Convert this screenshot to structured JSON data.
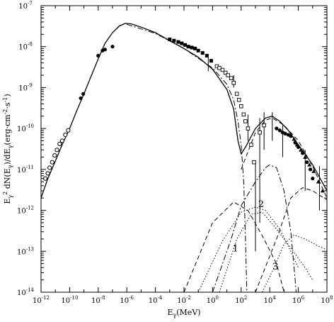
{
  "chart_data": {
    "type": "scatter",
    "title": "",
    "xlabel": "E_γ(MeV)",
    "ylabel": "E_γ^2 dN(E_γ)/dE_γ(erg·cm^-2·s^-1)",
    "xscale": "log",
    "yscale": "log",
    "xlim": [
      1e-12,
      100000000.0
    ],
    "ylim": [
      1e-14,
      1e-07
    ],
    "grid": false,
    "legend": "none",
    "x_ticks": [
      {
        "value": 1e-12,
        "base": "10",
        "exp": "-12"
      },
      {
        "value": 1e-10,
        "base": "10",
        "exp": "-10"
      },
      {
        "value": 1e-08,
        "base": "10",
        "exp": "-8"
      },
      {
        "value": 1e-06,
        "base": "10",
        "exp": "-6"
      },
      {
        "value": 0.0001,
        "base": "10",
        "exp": "-4"
      },
      {
        "value": 0.01,
        "base": "10",
        "exp": "-2"
      },
      {
        "value": 1,
        "base": "10",
        "exp": "0"
      },
      {
        "value": 100.0,
        "base": "10",
        "exp": "2"
      },
      {
        "value": 10000.0,
        "base": "10",
        "exp": "4"
      },
      {
        "value": 1000000.0,
        "base": "10",
        "exp": "6"
      },
      {
        "value": 100000000.0,
        "base": "10",
        "exp": "8"
      }
    ],
    "y_ticks": [
      {
        "value": 1e-14,
        "base": "10",
        "exp": "-14"
      },
      {
        "value": 1e-13,
        "base": "10",
        "exp": "-13"
      },
      {
        "value": 1e-12,
        "base": "10",
        "exp": "-12"
      },
      {
        "value": 1e-11,
        "base": "10",
        "exp": "-11"
      },
      {
        "value": 1e-10,
        "base": "10",
        "exp": "-10"
      },
      {
        "value": 1e-09,
        "base": "10",
        "exp": "-9"
      },
      {
        "value": 1e-08,
        "base": "10",
        "exp": "-8"
      },
      {
        "value": 1e-07,
        "base": "10",
        "exp": "-7"
      }
    ],
    "annotations": [
      {
        "text": "1",
        "x": 40,
        "y": 1e-13
      },
      {
        "text": "2",
        "x": 2500,
        "y": 1.2e-12
      },
      {
        "text": "3",
        "x": 25000,
        "y": 3.6e-14
      }
    ],
    "series": [
      {
        "style": "solid",
        "color": "#000000",
        "points": [
          [
            1e-12,
            2e-12
          ],
          [
            3e-12,
            6e-12
          ],
          [
            1e-11,
            1.6e-11
          ],
          [
            3e-11,
            4e-11
          ],
          [
            1e-10,
            1e-10
          ],
          [
            3e-10,
            2.6e-10
          ],
          [
            1e-09,
            7e-10
          ],
          [
            3e-09,
            1.8e-09
          ],
          [
            1e-08,
            5e-09
          ],
          [
            3e-08,
            1.2e-08
          ],
          [
            1e-07,
            2.2e-08
          ],
          [
            3e-07,
            3.2e-08
          ],
          [
            8e-07,
            3.7e-08
          ],
          [
            2e-06,
            3.6e-08
          ],
          [
            1e-05,
            3e-08
          ],
          [
            0.0001,
            2.2e-08
          ],
          [
            0.001,
            1.4e-08
          ],
          [
            0.01,
            9e-09
          ],
          [
            0.1,
            5.5e-09
          ],
          [
            1,
            2.8e-09
          ],
          [
            10,
            9e-10
          ],
          [
            30,
            3e-10
          ],
          [
            60,
            5e-11
          ],
          [
            100,
            2.4e-11
          ],
          [
            200,
            3.5e-11
          ],
          [
            1000,
            1e-10
          ],
          [
            5000,
            1.8e-10
          ],
          [
            15000,
            2e-10
          ],
          [
            50000,
            1.5e-10
          ],
          [
            200000,
            9e-11
          ],
          [
            1000000.0,
            4e-11
          ],
          [
            10000000.0,
            1.3e-11
          ],
          [
            100000000.0,
            3e-12
          ]
        ]
      },
      {
        "style": "dashdot",
        "color": "#000000",
        "points": [
          [
            1e-06,
            3.5e-08
          ],
          [
            0.0001,
            2.1e-08
          ],
          [
            0.01,
            9e-09
          ],
          [
            1,
            3e-09
          ],
          [
            10,
            1.2e-09
          ],
          [
            30,
            5e-10
          ],
          [
            60,
            1.5e-10
          ],
          [
            100,
            4e-11
          ],
          [
            150,
            5e-12
          ],
          [
            200,
            2e-13
          ],
          [
            250,
            1e-14
          ]
        ]
      },
      {
        "style": "dashdot",
        "color": "#000000",
        "points": [
          [
            1,
            1e-14
          ],
          [
            20,
            2e-13
          ],
          [
            100,
            1.3e-12
          ],
          [
            1000,
            5e-12
          ],
          [
            5000,
            1.1e-11
          ],
          [
            10000,
            1.3e-11
          ],
          [
            30000,
            1.1e-11
          ],
          [
            100000,
            3e-12
          ],
          [
            300000,
            3e-13
          ],
          [
            600000,
            2e-14
          ],
          [
            700000,
            1e-14
          ]
        ]
      },
      {
        "style": "dashed",
        "color": "#000000",
        "points": [
          [
            0.01,
            1e-14
          ],
          [
            1,
            5e-13
          ],
          [
            30,
            1.6e-12
          ],
          [
            300,
            1e-12
          ],
          [
            3000,
            2.4e-13
          ],
          [
            30000,
            5e-14
          ],
          [
            100000.0,
            1e-14
          ]
        ]
      },
      {
        "style": "dashed",
        "color": "#000000",
        "points": [
          [
            1000,
            1e-14
          ],
          [
            30000,
            2e-13
          ],
          [
            300000,
            2e-12
          ],
          [
            2000000.0,
            3.6e-12
          ],
          [
            10000000.0,
            3e-12
          ],
          [
            100000000.0,
            1.8e-12
          ]
        ]
      },
      {
        "style": "dashed",
        "color": "#000000",
        "points": [
          [
            100,
            1e-11
          ],
          [
            1000,
            8e-11
          ],
          [
            5000,
            1.6e-10
          ],
          [
            15000,
            1.8e-10
          ],
          [
            100000.0,
            1.2e-10
          ],
          [
            1000000.0,
            5e-11
          ],
          [
            10000000.0,
            1.2e-11
          ],
          [
            100000000.0,
            2e-12
          ]
        ]
      },
      {
        "style": "dotted",
        "color": "#000000",
        "points": [
          [
            0.1,
            1e-14
          ],
          [
            5,
            1.8e-13
          ],
          [
            100,
            9e-13
          ],
          [
            1000,
            1.2e-12
          ],
          [
            5000,
            1e-12
          ],
          [
            50000,
            3.5e-13
          ],
          [
            300000,
            1e-13
          ],
          [
            1000000.0,
            4e-14
          ]
        ]
      },
      {
        "style": "dotted",
        "color": "#000000",
        "points": [
          [
            3,
            1e-14
          ],
          [
            50,
            2e-13
          ],
          [
            500,
            8e-13
          ],
          [
            3000,
            9e-13
          ],
          [
            30000,
            3.5e-13
          ],
          [
            300000,
            1.2e-13
          ],
          [
            3000000.0,
            4e-14
          ],
          [
            10000000.0,
            2e-14
          ]
        ]
      },
      {
        "style": "dotted",
        "color": "#000000",
        "points": [
          [
            3000,
            1e-14
          ],
          [
            20000,
            4e-14
          ],
          [
            100000,
            1.5e-13
          ],
          [
            500000,
            2.5e-13
          ],
          [
            3000000.0,
            2e-13
          ],
          [
            30000000.0,
            1.3e-13
          ],
          [
            100000000.0,
            1.1e-13
          ]
        ]
      }
    ],
    "data_points": [
      {
        "marker": "open-circle",
        "points": [
          [
            2e-12,
            6e-12
          ],
          [
            3e-12,
            8e-12
          ],
          [
            4e-12,
            1.1e-11
          ],
          [
            6e-12,
            1.5e-11
          ],
          [
            9e-12,
            2.2e-11
          ],
          [
            1.3e-11,
            3e-11
          ],
          [
            2e-11,
            4.2e-11
          ],
          [
            3e-11,
            5e-11
          ],
          [
            5e-11,
            7e-11
          ],
          [
            8e-11,
            9e-11
          ]
        ]
      },
      {
        "marker": "filled-circle",
        "points": [
          [
            6e-10,
            5.5e-10
          ],
          [
            9e-10,
            7e-10
          ],
          [
            1e-08,
            6e-09
          ],
          [
            2e-08,
            8e-09
          ],
          [
            3e-08,
            8.5e-09
          ],
          [
            1e-07,
            1e-08
          ],
          [
            30000.0,
            1e-10
          ],
          [
            50000.0,
            9e-11
          ],
          [
            80000.0,
            8e-11
          ],
          [
            120000.0,
            7.5e-11
          ],
          [
            200000.0,
            7e-11
          ],
          [
            300000.0,
            6.5e-11
          ],
          [
            600000.0,
            4.5e-11
          ],
          [
            1000000.0,
            3.5e-11
          ],
          [
            2000000.0,
            2.5e-11
          ],
          [
            4000000.0,
            1.5e-11
          ],
          [
            7000000.0,
            1e-11
          ],
          [
            10000000.0,
            6e-12
          ]
        ]
      },
      {
        "marker": "filled-square",
        "points": [
          [
            0.001,
            1.5e-08
          ],
          [
            0.002,
            1.4e-08
          ],
          [
            0.004,
            1.3e-08
          ],
          [
            0.007,
            1.2e-08
          ],
          [
            0.012,
            1.1e-08
          ],
          [
            0.02,
            1e-08
          ],
          [
            0.035,
            9.5e-09
          ],
          [
            0.06,
            9e-09
          ],
          [
            0.1,
            8e-09
          ],
          [
            0.2,
            7e-09
          ],
          [
            0.4,
            6e-09
          ],
          [
            0.8,
            4.5e-09
          ]
        ]
      },
      {
        "marker": "open-square",
        "points": [
          [
            2,
            3.3e-09
          ],
          [
            3,
            3e-09
          ],
          [
            5,
            2.7e-09
          ],
          [
            8,
            2.3e-09
          ],
          [
            12,
            2e-09
          ],
          [
            20,
            1.7e-09
          ],
          [
            30,
            1.3e-09
          ],
          [
            50,
            7e-10
          ],
          [
            70,
            5e-10
          ],
          [
            100,
            3.5e-10
          ],
          [
            150,
            2.2e-10
          ],
          [
            200,
            1.5e-10
          ],
          [
            300,
            1e-10
          ],
          [
            500,
            4e-11
          ],
          [
            800,
            1.5e-11
          ],
          [
            2000,
            8e-11
          ],
          [
            4000,
            1.2e-10
          ]
        ]
      },
      {
        "marker": "filled-triangle",
        "points": [
          [
            300000.0,
            7e-11
          ],
          [
            500000.0,
            5.5e-11
          ],
          [
            800000.0,
            4e-11
          ],
          [
            1500000.0,
            3e-11
          ],
          [
            3000000.0,
            2e-11
          ],
          [
            6000000.0,
            1.3e-11
          ],
          [
            12000000.0,
            9e-12
          ],
          [
            25000000.0,
            5e-12
          ],
          [
            50000000.0,
            3e-12
          ]
        ]
      }
    ],
    "error_bars": [
      [
        0.5,
        2.5e-09,
        5.5e-09
      ],
      [
        30,
        1e-09,
        2e-09
      ],
      [
        300,
        5e-11,
        2.2e-10
      ],
      [
        1000,
        1e-13,
        1.5e-11
      ],
      [
        2000,
        5e-13,
        1.8e-10
      ],
      [
        4000,
        3e-11,
        2.5e-10
      ],
      [
        15000,
        5e-11,
        2.5e-10
      ],
      [
        80000,
        2e-11,
        1.2e-10
      ],
      [
        3000000.0,
        3e-12,
        3e-11
      ],
      [
        30000000.0,
        1e-12,
        1.2e-11
      ]
    ]
  }
}
